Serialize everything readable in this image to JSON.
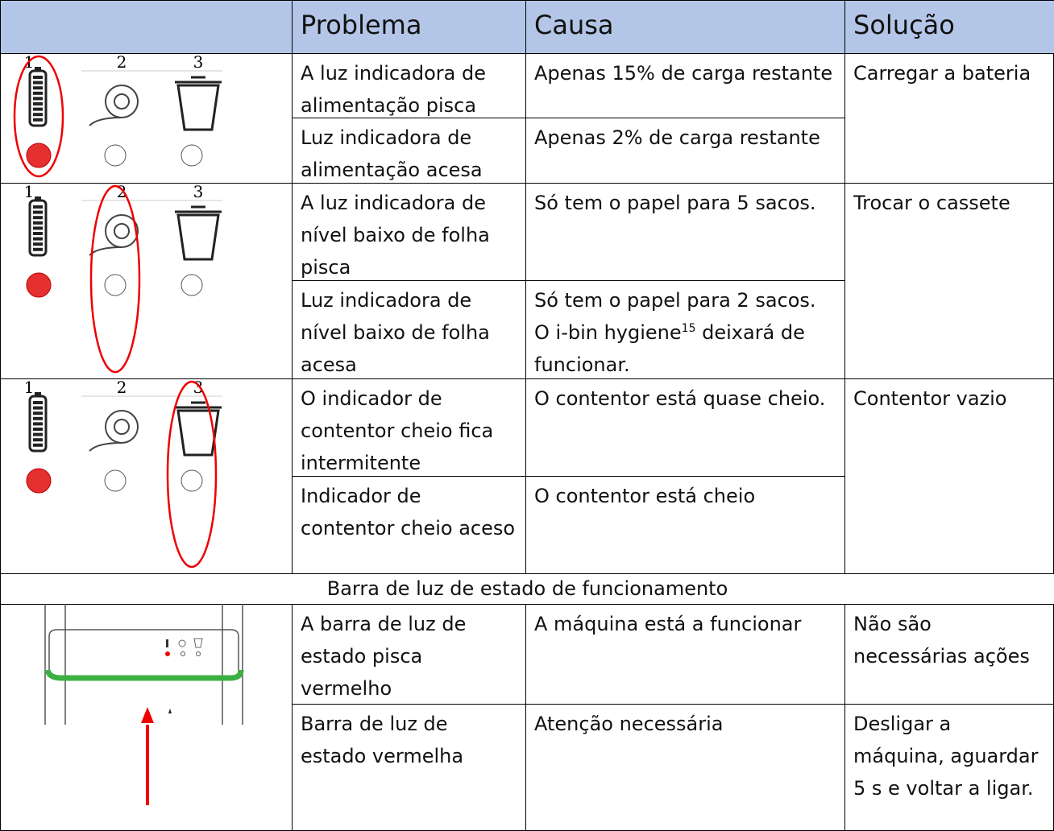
{
  "header": {
    "columns": [
      "Problema",
      "Causa",
      "Solução"
    ]
  },
  "indicator_labels": [
    "1",
    "2",
    "3"
  ],
  "groups": [
    {
      "rows": [
        {
          "problem": "A luz indicadora de alimentação pisca",
          "cause": [
            "Apenas 15% de carga restante"
          ]
        },
        {
          "problem": "Luz indicadora de alimentação acesa",
          "cause": [
            "Apenas 2% de carga restante"
          ]
        }
      ],
      "solution": "Carregar a bateria"
    },
    {
      "rows": [
        {
          "problem": "A luz indicadora de nível baixo de folha pisca",
          "cause": [
            "Só tem o papel para 5 sacos."
          ]
        },
        {
          "problem": "Luz indicadora de nível baixo de folha acesa",
          "cause": [
            "Só tem o papel para 2 sacos. O i-bin hygiene",
            "15",
            " deixará de funcionar."
          ]
        }
      ],
      "solution": "Trocar o cassete"
    },
    {
      "rows": [
        {
          "problem": "O indicador de contentor cheio fica intermitente",
          "cause": [
            "O contentor está quase cheio."
          ]
        },
        {
          "problem": "Indicador de contentor cheio aceso",
          "cause": [
            "O contentor está cheio"
          ]
        }
      ],
      "solution": "Contentor vazio"
    },
    {
      "section_title": "Barra de luz de estado de funcionamento"
    },
    {
      "rows": [
        {
          "problem": "A barra de luz de estado pisca vermelho",
          "cause": [
            "A máquina está a funcionar"
          ],
          "solution": "Não são necessárias ações"
        },
        {
          "problem": "Barra de luz de estado vermelha",
          "cause": [
            "Atenção necessária"
          ],
          "solution": "Desligar a máquina, aguardar 5 s e voltar a ligar."
        }
      ]
    }
  ]
}
